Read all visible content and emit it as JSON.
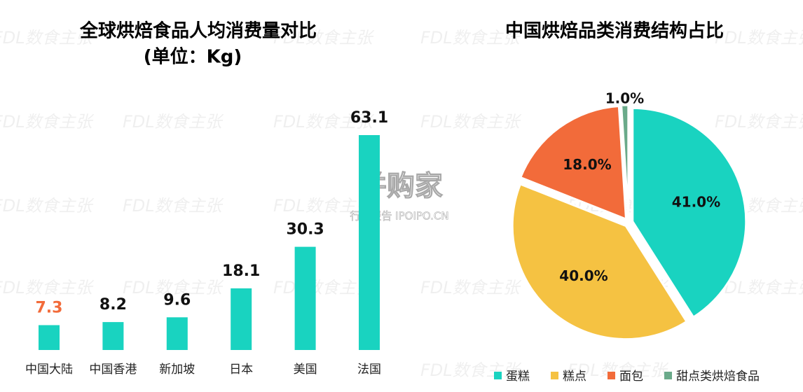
{
  "watermark": "FDL数食主张",
  "logo": "并购家",
  "logo_sub": "行业报告 IPOIPO.CN",
  "chart_data": [
    {
      "type": "bar",
      "title": "全球烘焙食品人均消费量对比",
      "subtitle": "(单位：Kg)",
      "categories": [
        "中国大陆",
        "中国香港",
        "新加坡",
        "日本",
        "美国",
        "法国"
      ],
      "values": [
        7.3,
        8.2,
        9.6,
        18.1,
        30.3,
        63.1
      ],
      "color": "#19d3c0",
      "highlight": {
        "index": 0,
        "color": "#f26b3a"
      }
    },
    {
      "type": "pie",
      "title": "中国烘焙品类消费结构占比",
      "categories": [
        "蛋糕",
        "糕点",
        "面包",
        "甜点类烘焙食品"
      ],
      "values": [
        41,
        40,
        18,
        1
      ],
      "value_labels": [
        "41.0%",
        "40.0%",
        "18.0%",
        "1.0%"
      ],
      "colors": [
        "#19d3c0",
        "#f5c242",
        "#f26b3a",
        "#6aaa8a"
      ],
      "legend": "bottom"
    }
  ]
}
